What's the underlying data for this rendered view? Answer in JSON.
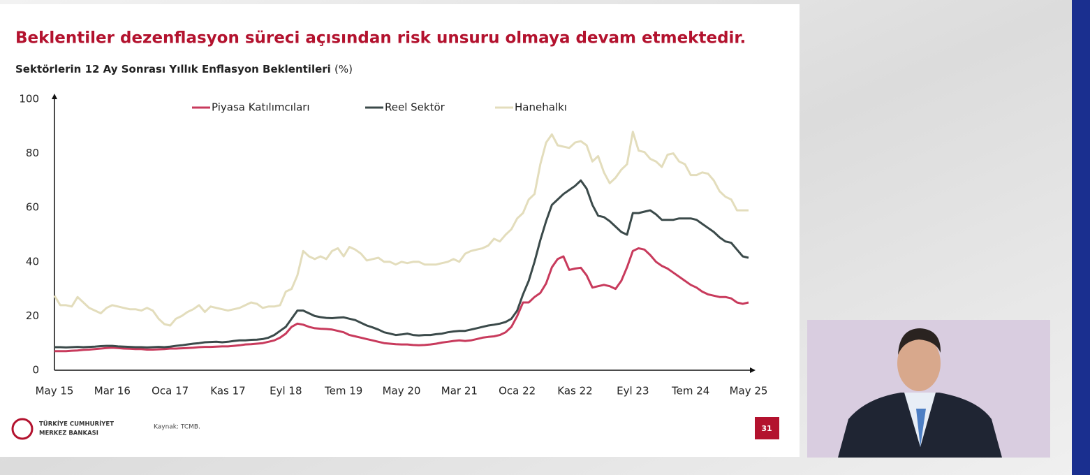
{
  "slide": {
    "headline": "Beklentiler dezenflasyon süreci açısından risk unsuru olmaya devam etmektedir.",
    "logo": [
      "TÜRKİYE CUMHURİYET",
      "MERKEZ BANKASI"
    ],
    "source": "Kaynak: TCMB.",
    "page_number": "31"
  },
  "chart_data": {
    "type": "line",
    "title": "Sektörlerin 12 Ay Sonrası Yıllık Enflasyon Beklentileri",
    "title_unit": "(%)",
    "legend": "top",
    "ylim": [
      0,
      100
    ],
    "yticks": [
      0,
      20,
      40,
      60,
      80,
      100
    ],
    "grid": false,
    "categories": [
      "May 15",
      null,
      null,
      null,
      null,
      null,
      null,
      null,
      null,
      null,
      "Mar 16",
      null,
      null,
      null,
      null,
      null,
      null,
      null,
      null,
      null,
      "Oca 17",
      null,
      null,
      null,
      null,
      null,
      null,
      null,
      null,
      null,
      "Kas 17",
      null,
      null,
      null,
      null,
      null,
      null,
      null,
      null,
      null,
      "Eyl 18",
      null,
      null,
      null,
      null,
      null,
      null,
      null,
      null,
      null,
      "Tem 19",
      null,
      null,
      null,
      null,
      null,
      null,
      null,
      null,
      null,
      "May 20",
      null,
      null,
      null,
      null,
      null,
      null,
      null,
      null,
      null,
      "Mar 21",
      null,
      null,
      null,
      null,
      null,
      null,
      null,
      null,
      null,
      "Oca 22",
      null,
      null,
      null,
      null,
      null,
      null,
      null,
      null,
      null,
      "Kas 22",
      null,
      null,
      null,
      null,
      null,
      null,
      null,
      null,
      null,
      "Eyl 23",
      null,
      null,
      null,
      null,
      null,
      null,
      null,
      null,
      null,
      "Tem 24",
      null,
      null,
      null,
      null,
      null,
      null,
      null,
      null,
      null,
      "May 25"
    ],
    "series": [
      {
        "name": "Piyasa Katılımcıları",
        "color": "#c83a5c",
        "values": [
          7,
          7,
          7,
          7.2,
          7.3,
          7.5,
          7.6,
          7.8,
          8,
          8.2,
          8.3,
          8.2,
          8,
          7.9,
          7.8,
          7.8,
          7.6,
          7.6,
          7.7,
          7.8,
          8,
          8,
          8.1,
          8.2,
          8.3,
          8.5,
          8.6,
          8.6,
          8.7,
          8.8,
          8.8,
          9,
          9.2,
          9.5,
          9.6,
          9.8,
          10,
          10.5,
          11,
          12,
          13.5,
          16,
          17.2,
          16.8,
          16,
          15.5,
          15.3,
          15.2,
          15,
          14.5,
          14,
          13,
          12.5,
          12,
          11.5,
          11,
          10.5,
          10,
          9.8,
          9.6,
          9.5,
          9.5,
          9.3,
          9.2,
          9.3,
          9.5,
          9.8,
          10.2,
          10.5,
          10.8,
          11,
          10.8,
          11,
          11.5,
          12,
          12.3,
          12.5,
          13,
          14,
          16,
          20,
          25,
          25,
          27,
          28.5,
          32,
          38,
          41,
          42,
          37,
          37.5,
          37.8,
          35,
          30.5,
          31,
          31.5,
          31,
          30,
          33,
          38,
          44,
          45,
          44.5,
          42.5,
          40,
          38.5,
          37.5,
          36,
          34.5,
          33,
          31.5,
          30.5,
          29,
          28,
          27.5,
          27,
          27,
          26.5,
          25,
          24.5,
          25
        ]
      },
      {
        "name": "Reel Sektör",
        "color": "#3b4a4a",
        "values": [
          8.5,
          8.5,
          8.4,
          8.5,
          8.6,
          8.5,
          8.6,
          8.7,
          8.9,
          9,
          9,
          8.8,
          8.7,
          8.6,
          8.5,
          8.5,
          8.4,
          8.5,
          8.6,
          8.5,
          8.7,
          9,
          9.2,
          9.5,
          9.8,
          10,
          10.3,
          10.4,
          10.5,
          10.3,
          10.5,
          10.8,
          11,
          11,
          11.2,
          11.3,
          11.5,
          12,
          13,
          14.5,
          16,
          19,
          22,
          22,
          21,
          20,
          19.6,
          19.3,
          19.2,
          19.4,
          19.5,
          19,
          18.5,
          17.5,
          16.5,
          15.8,
          15,
          14,
          13.5,
          13,
          13.2,
          13.5,
          13,
          12.8,
          13,
          13,
          13.3,
          13.5,
          14,
          14.3,
          14.5,
          14.5,
          15,
          15.5,
          16,
          16.5,
          16.8,
          17.2,
          17.8,
          19,
          22,
          28,
          33,
          40,
          48,
          55,
          61,
          63,
          65,
          66.5,
          68,
          70,
          67,
          61,
          57,
          56.5,
          55,
          53,
          51,
          50,
          58,
          58,
          58.5,
          59,
          57.5,
          55.5,
          55.5,
          55.5,
          56,
          56,
          56,
          55.5,
          54,
          52.5,
          51,
          49,
          47.5,
          47,
          44.5,
          42,
          41.5
        ]
      },
      {
        "name": "Hanehalkı",
        "color": "#e3ddbc",
        "values": [
          27.5,
          24,
          24,
          23.5,
          27,
          25,
          23,
          22,
          21,
          23,
          24,
          23.5,
          23,
          22.5,
          22.5,
          22,
          23,
          22,
          19,
          17,
          16.5,
          19,
          20,
          21.5,
          22.5,
          24,
          21.5,
          23.5,
          23,
          22.5,
          22,
          22.5,
          23,
          24,
          25,
          24.5,
          23,
          23.5,
          23.5,
          24,
          29,
          30,
          35,
          44,
          42,
          41,
          42,
          41,
          44,
          45,
          42,
          45.5,
          44.5,
          43,
          40.5,
          41,
          41.5,
          40,
          40,
          39,
          40,
          39.5,
          40,
          40,
          39,
          39,
          39,
          39.5,
          40,
          41,
          40,
          43,
          44,
          44.5,
          45,
          46,
          48.5,
          47.5,
          50,
          52,
          56,
          58,
          63,
          65,
          76,
          84,
          87,
          83,
          82.5,
          82,
          84,
          84.5,
          83,
          77,
          79,
          73,
          69,
          71,
          74,
          76,
          88,
          81,
          80.5,
          78,
          77,
          75,
          79.5,
          80,
          77,
          76,
          72,
          72,
          73,
          72.5,
          70,
          66,
          64,
          63,
          59,
          59,
          59
        ]
      }
    ]
  }
}
